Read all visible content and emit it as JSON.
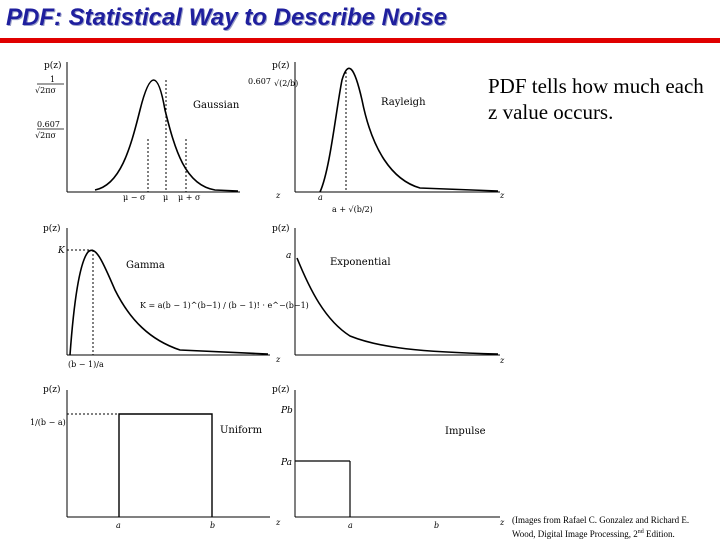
{
  "title": "PDF: Statistical Way to Describe Noise",
  "note": "PDF tells how much each z value occurs.",
  "credit": {
    "line1": "(Images from Rafael C. Gonzalez and Richard E.",
    "line2_prefix": "Wood, Digital Image Processing, 2",
    "line2_sup": "nd",
    "line2_suffix": " Edition."
  },
  "panels": {
    "gaussian": {
      "name": "Gaussian",
      "ylabel": "p(z)",
      "peak_num": "1",
      "peak_den": "√2πσ",
      "mid_num": "0.607",
      "mid_den": "√2πσ",
      "xlabel": "z",
      "ticks": [
        "μ − σ",
        "μ",
        "μ + σ"
      ]
    },
    "rayleigh": {
      "name": "Rayleigh",
      "ylabel": "p(z)",
      "peak_value": "0.607",
      "peak_frac": "√(2/b)",
      "xlabel": "z",
      "tick_a": "a",
      "tick_peak": "a + √(b/2)"
    },
    "gamma": {
      "name": "Gamma",
      "ylabel": "p(z)",
      "peak_label": "K",
      "formula": "K = a(b − 1)^(b−1) / (b − 1)! · e^−(b−1)",
      "xlabel": "z",
      "tick": "(b − 1)/a"
    },
    "exponential": {
      "name": "Exponential",
      "ylabel": "p(z)",
      "peak_label": "a",
      "xlabel": "z"
    },
    "uniform": {
      "name": "Uniform",
      "ylabel": "p(z)",
      "height_label": "1/(b − a)",
      "xlabel": "z",
      "tick_a": "a",
      "tick_b": "b"
    },
    "impulse": {
      "name": "Impulse",
      "ylabel": "p(z)",
      "pb": "Pb",
      "pa": "Pa",
      "xlabel": "z",
      "tick_a": "a",
      "tick_b": "b"
    }
  }
}
